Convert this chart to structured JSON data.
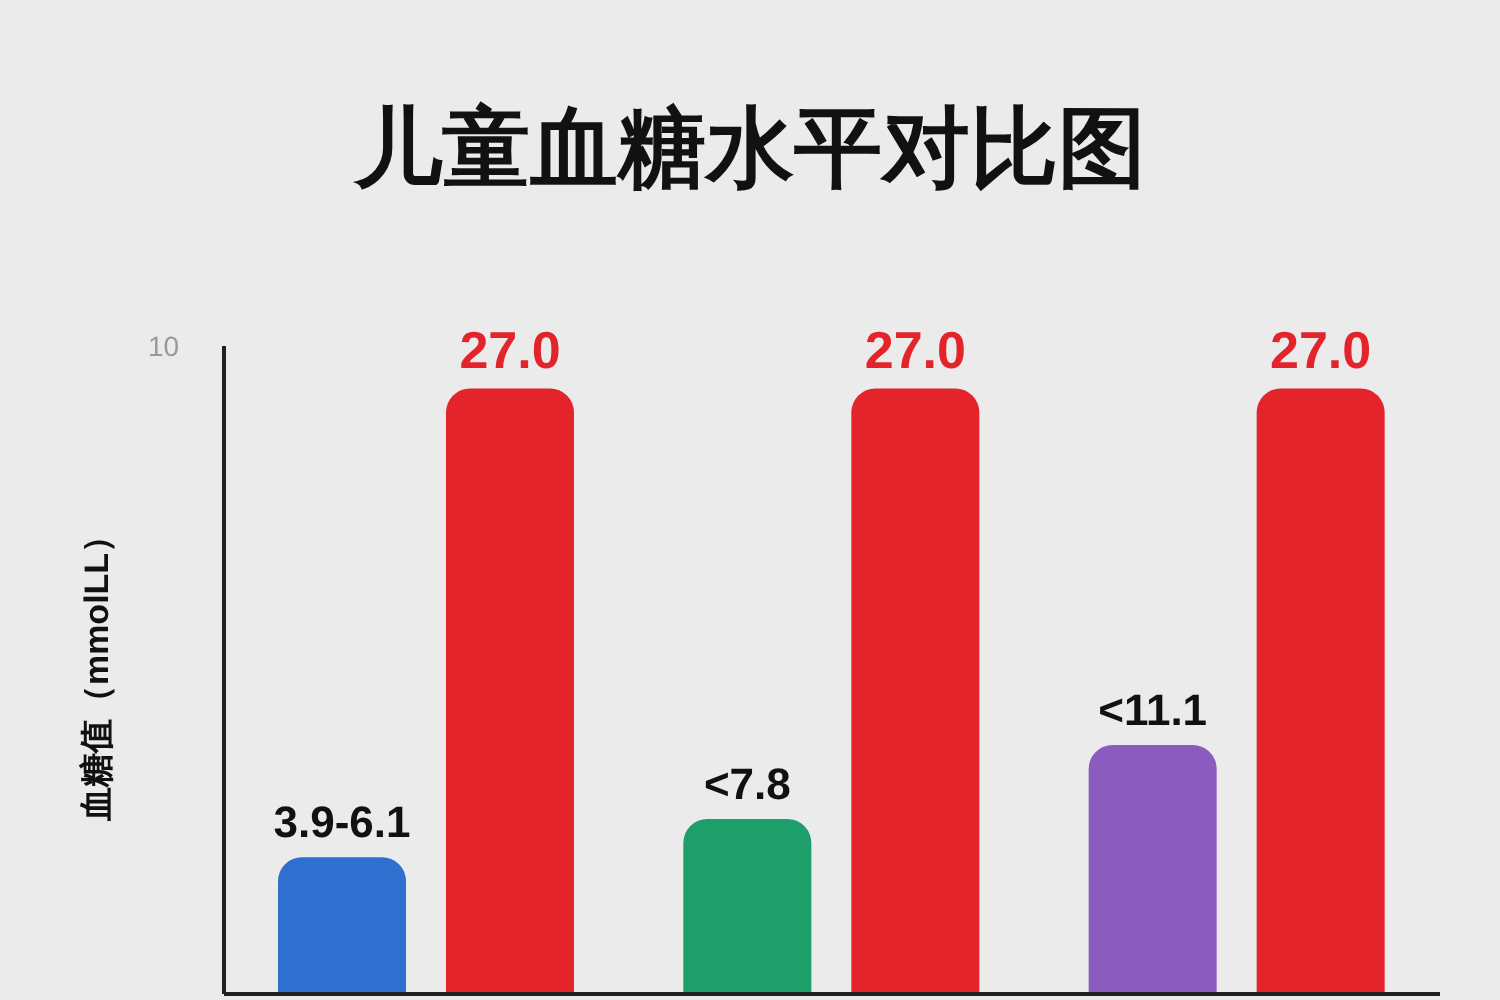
{
  "chart_data": {
    "type": "bar",
    "title": "儿童血糖水平对比图",
    "ylabel": "血糖值（mmolLL）",
    "categories": [
      null,
      null,
      null
    ],
    "series": [
      {
        "colors": [
          "#2e6fcf",
          "#1d9e6a",
          "#8a5cbf"
        ],
        "values": [
          6.1,
          7.8,
          11.1
        ],
        "value_labels": [
          "3.9-6.1",
          "<7.8",
          "<11.1"
        ]
      },
      {
        "color": "#e3242b",
        "values": [
          27.0,
          27.0,
          27.0
        ],
        "value_labels": [
          "27.0",
          "27.0",
          "27.0"
        ]
      }
    ],
    "annotations": [
      "10"
    ],
    "tick_labels": false,
    "grid": false,
    "legend": false
  }
}
